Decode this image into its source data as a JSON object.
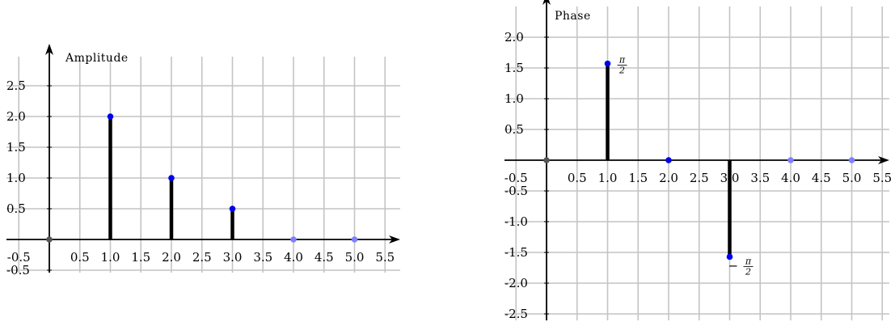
{
  "chart_data": [
    {
      "type": "stem",
      "ylabel": "Amplitude",
      "x": [
        0,
        1,
        2,
        3,
        4,
        5
      ],
      "values": [
        0,
        2.0,
        1.0,
        0.5,
        0,
        0
      ],
      "xticks": [
        "-0.5",
        "0.5",
        "1.0",
        "1.5",
        "2.0",
        "2.5",
        "3.0",
        "3.5",
        "4.0",
        "4.5",
        "5.0",
        "5.5"
      ],
      "yticks": [
        "-0.5",
        "0.5",
        "1.0",
        "1.5",
        "2.0",
        "2.5"
      ],
      "xlim": [
        -0.7,
        5.8
      ],
      "ylim": [
        -0.55,
        3.0
      ],
      "grid": true,
      "colors": {
        "marker": "#0000ee",
        "marker_zero": "#7f7fff",
        "origin": "#555555"
      }
    },
    {
      "type": "stem",
      "ylabel": "Phase",
      "x": [
        0,
        1,
        2,
        3,
        4,
        5
      ],
      "values": [
        0,
        1.5708,
        0,
        -1.5708,
        0,
        0
      ],
      "annotations": [
        {
          "x": 1,
          "y": 1.5708,
          "num": "π",
          "den": "2",
          "sign": ""
        },
        {
          "x": 3,
          "y": -1.5708,
          "num": "π",
          "den": "2",
          "sign": "−"
        }
      ],
      "xticks": [
        "-0.5",
        "0.5",
        "1.0",
        "1.5",
        "2.0",
        "2.5",
        "3.0",
        "3.5",
        "4.0",
        "4.5",
        "5.0",
        "5.5"
      ],
      "yticks": [
        "-2.5",
        "-2.0",
        "-1.5",
        "-1.0",
        "-0.5",
        "0.5",
        "1.0",
        "1.5",
        "2.0"
      ],
      "xlim": [
        -0.7,
        5.8
      ],
      "ylim": [
        -2.6,
        2.5
      ],
      "grid": true,
      "colors": {
        "marker": "#0000ee",
        "marker_zero": "#7f7fff",
        "origin": "#555555"
      }
    }
  ]
}
